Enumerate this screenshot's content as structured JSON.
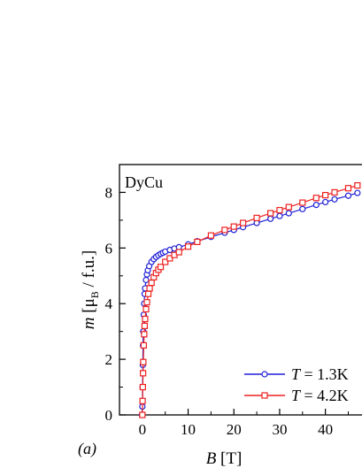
{
  "chart_data": {
    "type": "scatter",
    "panel_label": "(a)",
    "sample_label": "DyCu",
    "xlabel": {
      "symbol": "B",
      "unit": " [T]"
    },
    "ylabel": {
      "symbol": "m",
      "mid": " [μ",
      "sub": "B",
      "tail": " / f.u.]"
    },
    "xlim": [
      -5,
      48
    ],
    "ylim": [
      0,
      9
    ],
    "xticks": [
      0,
      10,
      20,
      30,
      40
    ],
    "yticks": [
      0,
      2,
      4,
      6,
      8
    ],
    "grid": false,
    "legend_position": "bottom-right",
    "series": [
      {
        "name": "T = 1.3K",
        "legend": {
          "symbol": "T",
          "rest": " = 1.3K"
        },
        "color": "#1f1fd6",
        "marker": "circle",
        "x": [
          -0.1,
          0,
          0.05,
          0.1,
          0.15,
          0.2,
          0.3,
          0.4,
          0.5,
          0.6,
          0.8,
          1.0,
          1.2,
          1.5,
          2.0,
          2.5,
          3.0,
          3.5,
          4.0,
          4.5,
          5.0,
          6.0,
          7.0,
          8.0,
          10,
          12,
          15,
          18,
          20,
          22,
          25,
          28,
          30,
          32,
          35,
          38,
          40,
          42,
          45,
          47
        ],
        "y": [
          0,
          0.3,
          1.0,
          1.8,
          2.5,
          3.0,
          3.6,
          4.0,
          4.35,
          4.55,
          4.85,
          5.05,
          5.2,
          5.35,
          5.5,
          5.6,
          5.68,
          5.74,
          5.79,
          5.83,
          5.87,
          5.93,
          5.98,
          6.03,
          6.13,
          6.24,
          6.4,
          6.55,
          6.65,
          6.75,
          6.9,
          7.05,
          7.15,
          7.25,
          7.4,
          7.55,
          7.65,
          7.75,
          7.88,
          7.98
        ]
      },
      {
        "name": "T = 4.2K",
        "legend": {
          "symbol": "T",
          "rest": " = 4.2K"
        },
        "color": "#ee2020",
        "marker": "square",
        "x": [
          0,
          0.05,
          0.1,
          0.15,
          0.2,
          0.3,
          0.4,
          0.5,
          0.6,
          0.8,
          1.0,
          1.3,
          1.6,
          2.0,
          2.5,
          3.0,
          3.5,
          4.0,
          5.0,
          6.0,
          7.0,
          8.0,
          10,
          12,
          15,
          18,
          20,
          22,
          25,
          28,
          30,
          32,
          35,
          38,
          40,
          42,
          45,
          47
        ],
        "y": [
          0,
          0.5,
          1.0,
          1.5,
          1.9,
          2.5,
          2.9,
          3.2,
          3.45,
          3.8,
          4.05,
          4.35,
          4.55,
          4.75,
          4.95,
          5.1,
          5.22,
          5.32,
          5.5,
          5.63,
          5.75,
          5.85,
          6.05,
          6.22,
          6.45,
          6.65,
          6.77,
          6.9,
          7.08,
          7.25,
          7.36,
          7.47,
          7.63,
          7.8,
          7.9,
          8.0,
          8.15,
          8.25
        ]
      }
    ]
  }
}
